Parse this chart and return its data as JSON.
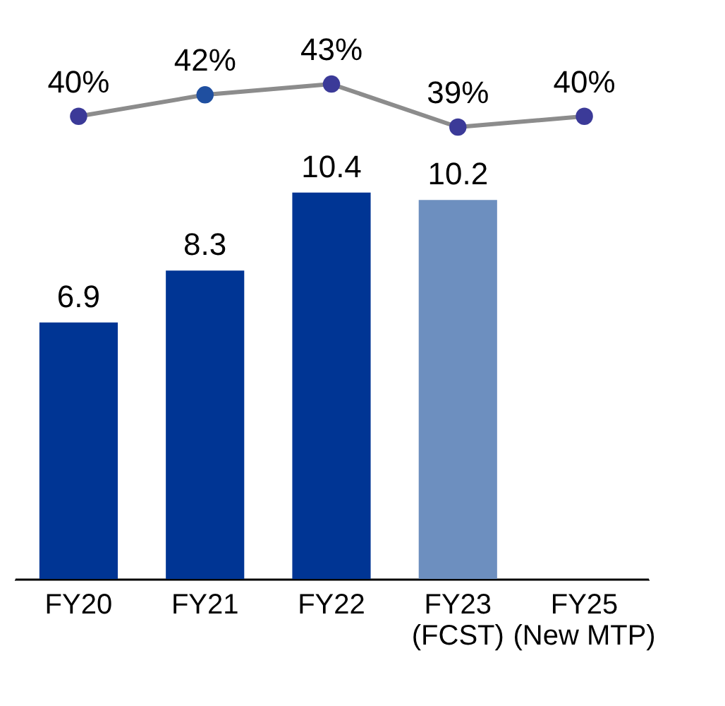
{
  "chart_data": {
    "type": "bar",
    "categories": [
      "FY20",
      "FY21",
      "FY22",
      "FY23 (FCST)",
      "FY25 (New MTP)"
    ],
    "data_labels": true,
    "ylim": [
      0,
      15.2
    ],
    "y2lim": [
      -3,
      49.5
    ],
    "tick_labels": "x",
    "grid": false,
    "series": [
      {
        "colors": [
          "#003594",
          "#003594",
          "#003594",
          "#6d8fbf",
          "#003594"
        ],
        "values": [
          6.9,
          8.3,
          10.4,
          10.2,
          null
        ]
      },
      {
        "type": "line",
        "axis": "y2",
        "color": "#8c8c8c",
        "colors": [
          "#3b3a98",
          "#1f4fa0",
          "#3b3a98",
          "#3b3a98",
          "#3b3a98"
        ],
        "marker": "circle",
        "values": [
          40,
          42,
          43,
          39,
          40
        ],
        "value_labels": [
          "40%",
          "42%",
          "43%",
          "39%",
          "40%"
        ]
      }
    ]
  }
}
